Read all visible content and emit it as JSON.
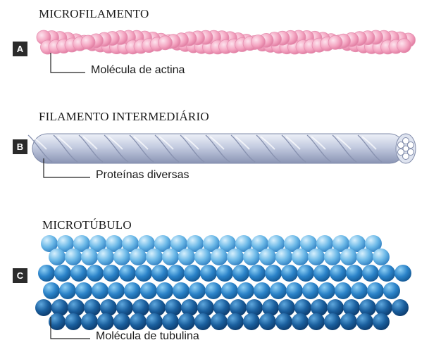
{
  "panels": [
    {
      "badge": "A",
      "title": "MICROFILAMENTO",
      "label": "Molécula de actina"
    },
    {
      "badge": "B",
      "title": "FILAMENTO INTERMEDIÁRIO",
      "label": "Proteínas diversas"
    },
    {
      "badge": "C",
      "title": "MICROTÚBULO",
      "label": "Molécula de tubulina"
    }
  ],
  "colors": {
    "actin": "#f4a6c2",
    "rope": "#c4cde0",
    "tubulin_light": "#7fc4ec",
    "tubulin_dark": "#1b5b96"
  }
}
